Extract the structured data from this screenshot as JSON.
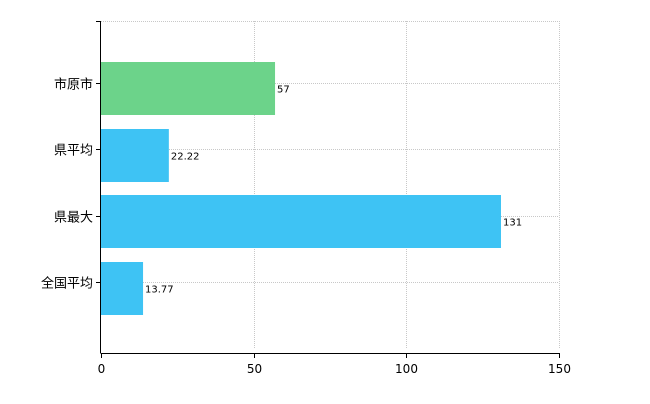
{
  "chart_data": {
    "type": "bar",
    "orientation": "horizontal",
    "categories": [
      "市原市",
      "県平均",
      "県最大",
      "全国平均"
    ],
    "values": [
      57,
      22.22,
      131,
      13.77
    ],
    "value_labels": [
      "57",
      "22.22",
      "131",
      "13.77"
    ],
    "bar_colors": [
      "#6cd38a",
      "#3ec3f4",
      "#3ec3f4",
      "#3ec3f4"
    ],
    "xlim": [
      0,
      150
    ],
    "x_ticks": [
      0,
      50,
      100,
      150
    ],
    "x_tick_labels": [
      "0",
      "50",
      "100",
      "150"
    ],
    "title": "",
    "xlabel": "",
    "ylabel": "",
    "grid": true,
    "legend": "none"
  }
}
